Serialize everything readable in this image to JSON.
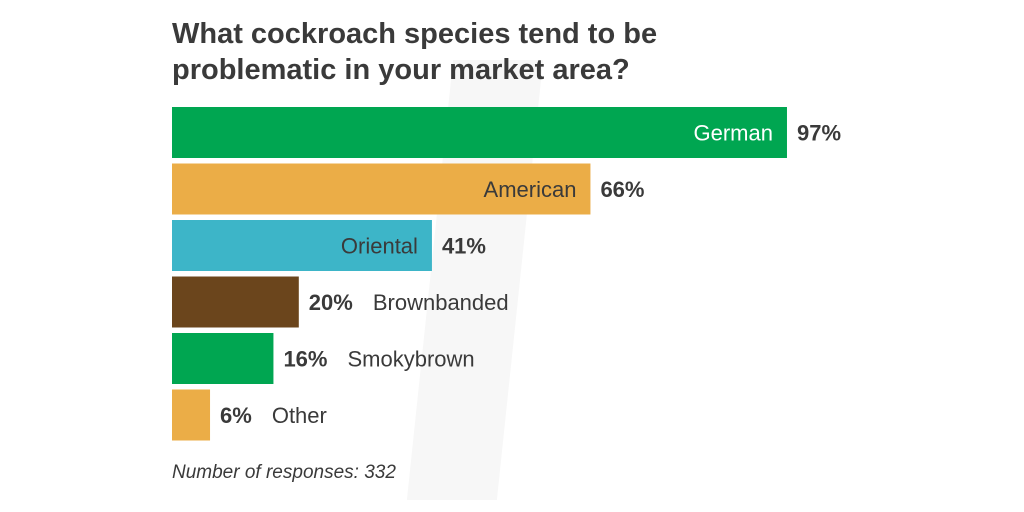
{
  "chart_data": {
    "type": "bar",
    "orientation": "horizontal",
    "title": "What cockroach species tend to be problematic in your market area?",
    "title_lines": [
      "What cockroach species tend to be",
      "problematic in your market area?"
    ],
    "categories": [
      "German",
      "American",
      "Oriental",
      "Brownbanded",
      "Smokybrown",
      "Other"
    ],
    "values": [
      97,
      66,
      41,
      20,
      16,
      6
    ],
    "value_labels": [
      "97%",
      "66%",
      "41%",
      "20%",
      "16%",
      "6%"
    ],
    "colors": [
      "#00a651",
      "#ebad47",
      "#3db5c8",
      "#6b451c",
      "#00a651",
      "#ebad47"
    ],
    "label_colors": [
      "#ffffff",
      "#3a3a3a",
      "#3a3a3a",
      "#3a3a3a",
      "#3a3a3a",
      "#3a3a3a"
    ],
    "label_inside": [
      true,
      true,
      true,
      false,
      false,
      false
    ],
    "xlim": [
      0,
      100
    ],
    "grid": false,
    "footnote": "Number of responses: 332"
  }
}
